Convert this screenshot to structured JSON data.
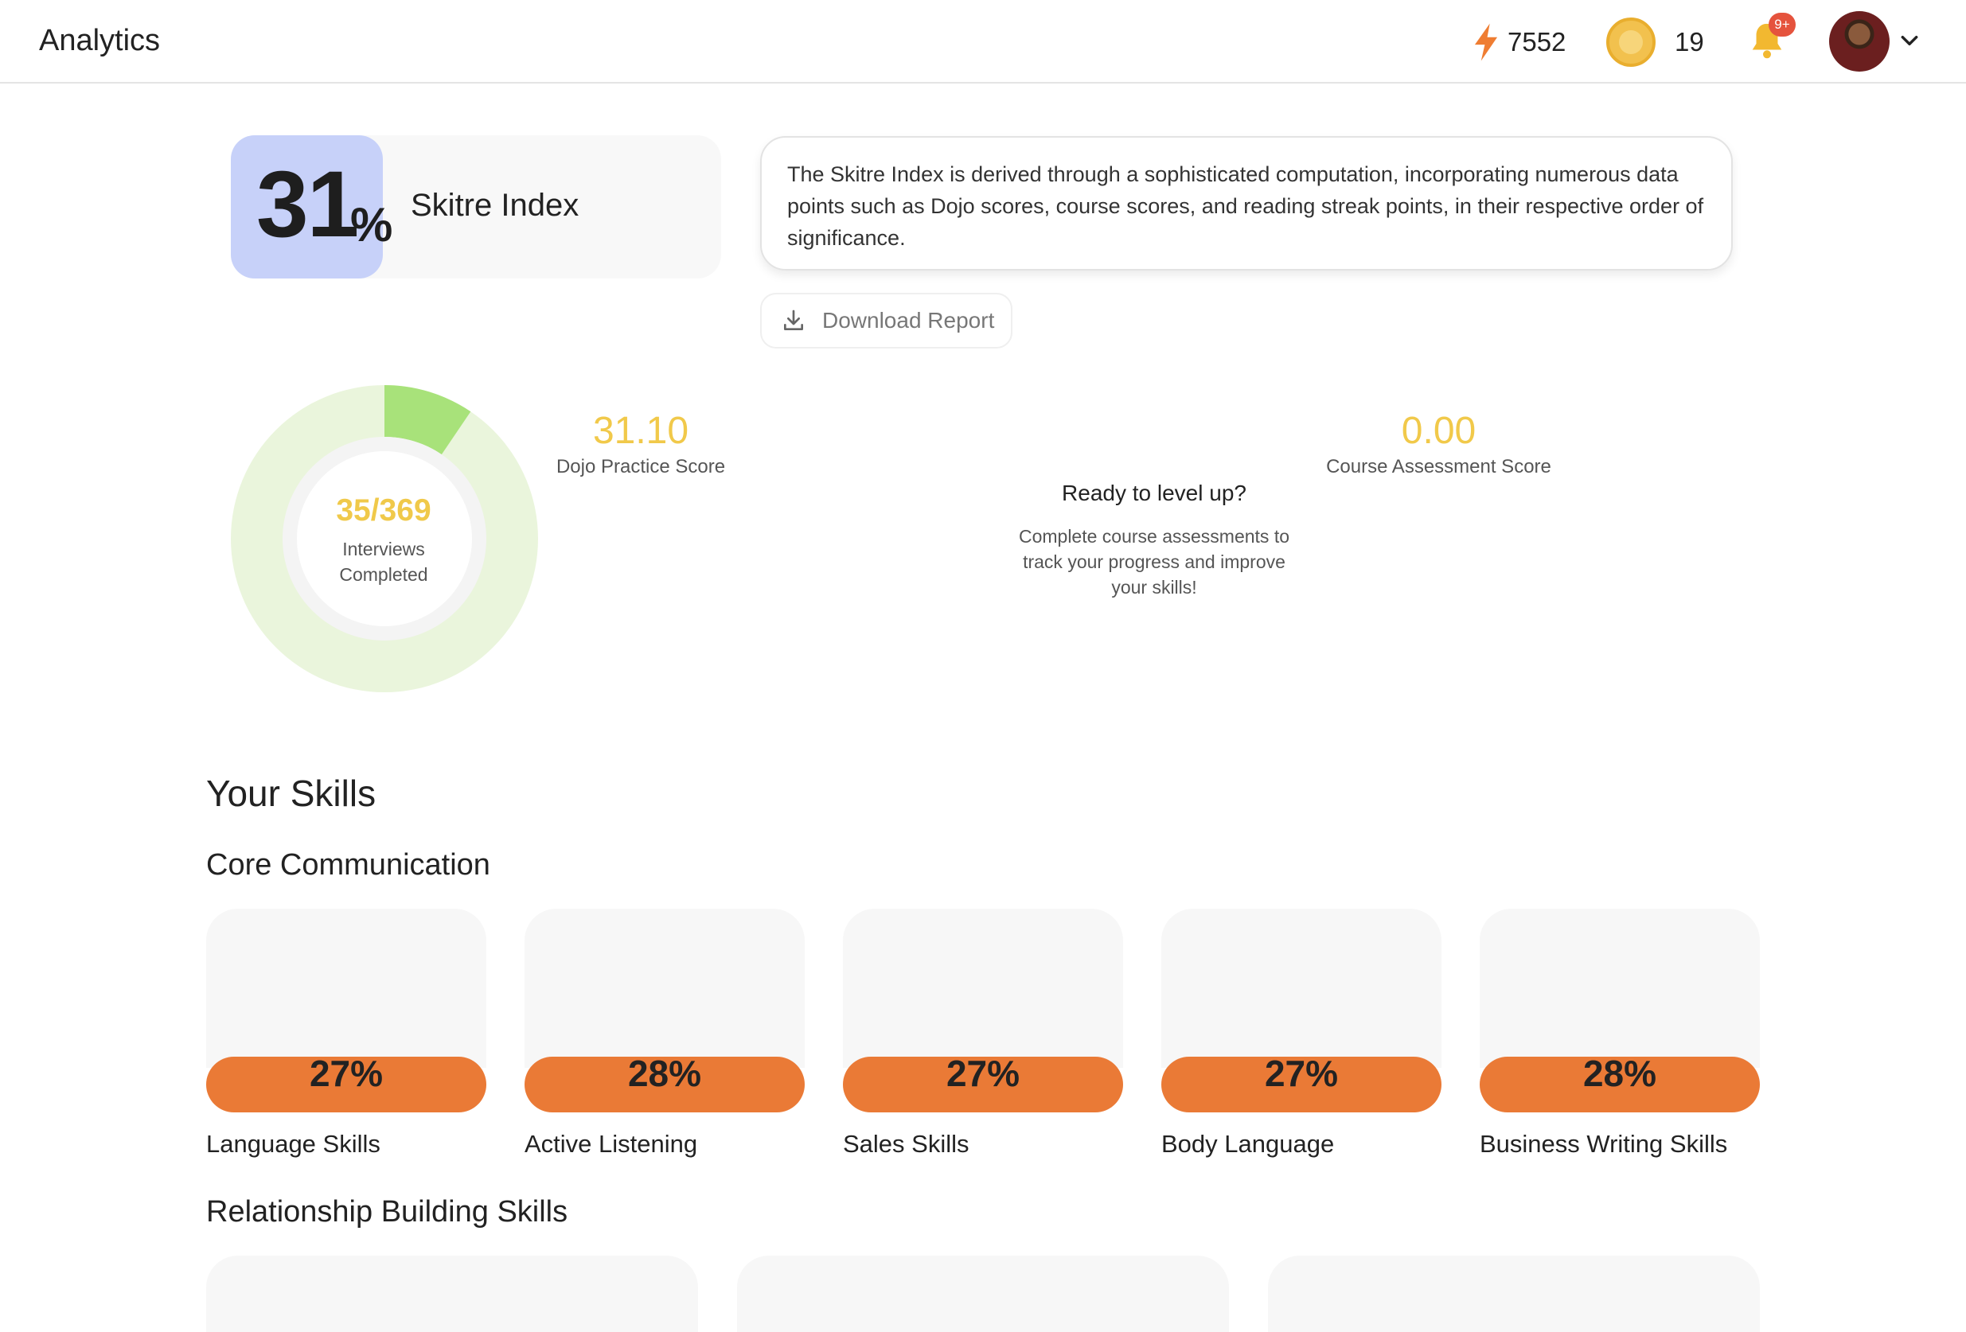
{
  "header": {
    "title": "Analytics",
    "streak_points": "7552",
    "coins": "19",
    "notification_badge": "9+"
  },
  "skitre_index": {
    "value": "31",
    "unit": "%",
    "label": "Skitre Index",
    "description": "The Skitre Index is derived through a sophisticated computation, incorporating numerous data points such as Dojo scores, course scores, and reading streak points, in their respective order of significance.",
    "download_label": "Download Report"
  },
  "interviews": {
    "completed": 35,
    "total": 369,
    "count_text": "35/369",
    "caption": "Interviews Completed"
  },
  "dojo": {
    "score": "31.10",
    "label": "Dojo Practice Score"
  },
  "course": {
    "score": "0.00",
    "label": "Course Assessment Score"
  },
  "level_up": {
    "heading": "Ready to level up?",
    "text": "Complete course assessments to track your progress and improve your skills!"
  },
  "skills": {
    "title": "Your Skills",
    "core_title": "Core Communication",
    "core": [
      {
        "name": "Language Skills",
        "percent": "27%"
      },
      {
        "name": "Active Listening",
        "percent": "28%"
      },
      {
        "name": "Sales Skills",
        "percent": "27%"
      },
      {
        "name": "Body Language",
        "percent": "27%"
      },
      {
        "name": "Business Writing Skills",
        "percent": "28%"
      }
    ],
    "relationship_title": "Relationship Building Skills"
  },
  "colors": {
    "accent_yellow": "#f1c94a",
    "skill_bar": "#ea7a36",
    "index_block": "#c7d1f9",
    "donut_fill": "#a8e27a",
    "donut_track": "#eaf5dc"
  },
  "icons": {
    "streak": "lightning-bolt-icon",
    "coin": "coin-icon",
    "notifications": "bell-icon",
    "download": "download-icon",
    "profile_menu": "chevron-down-icon"
  }
}
